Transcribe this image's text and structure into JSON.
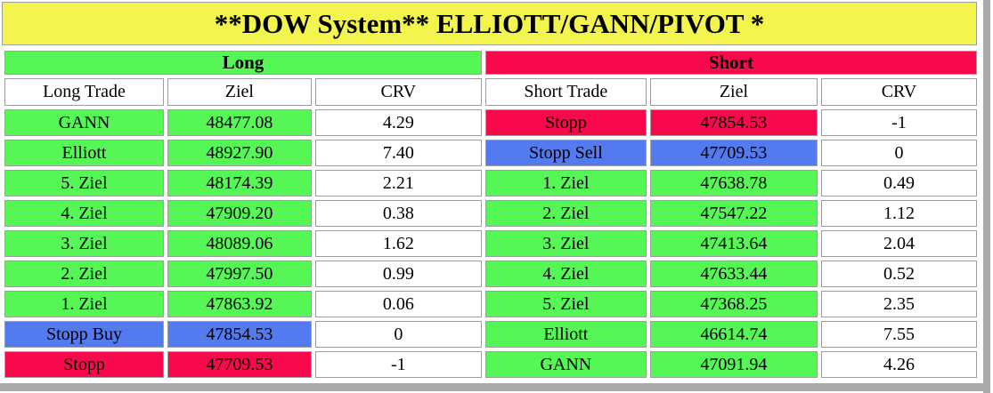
{
  "title": "**DOW System** ELLIOTT/GANN/PIVOT *",
  "colors": {
    "title_bg": "#f4f44e",
    "green": "#55f655",
    "red": "#f7094b",
    "blue": "#537aef",
    "cell_border": "#9e9e9e",
    "window_frame": "#a9a9a9"
  },
  "long": {
    "banner": "Long",
    "headers": [
      "Long Trade",
      "Ziel",
      "CRV"
    ],
    "rows": [
      {
        "label": "GANN",
        "ziel": "48477.08",
        "crv": "4.29",
        "color": "green"
      },
      {
        "label": "Elliott",
        "ziel": "48927.90",
        "crv": "7.40",
        "color": "green"
      },
      {
        "label": "5. Ziel",
        "ziel": "48174.39",
        "crv": "2.21",
        "color": "green"
      },
      {
        "label": "4. Ziel",
        "ziel": "47909.20",
        "crv": "0.38",
        "color": "green"
      },
      {
        "label": "3. Ziel",
        "ziel": "48089.06",
        "crv": "1.62",
        "color": "green"
      },
      {
        "label": "2. Ziel",
        "ziel": "47997.50",
        "crv": "0.99",
        "color": "green"
      },
      {
        "label": "1. Ziel",
        "ziel": "47863.92",
        "crv": "0.06",
        "color": "green"
      },
      {
        "label": "Stopp Buy",
        "ziel": "47854.53",
        "crv": "0",
        "color": "blue"
      },
      {
        "label": "Stopp",
        "ziel": "47709.53",
        "crv": "-1",
        "color": "red"
      }
    ]
  },
  "short": {
    "banner": "Short",
    "headers": [
      "Short Trade",
      "Ziel",
      "CRV"
    ],
    "rows": [
      {
        "label": "Stopp",
        "ziel": "47854.53",
        "crv": "-1",
        "color": "red"
      },
      {
        "label": "Stopp Sell",
        "ziel": "47709.53",
        "crv": "0",
        "color": "blue"
      },
      {
        "label": "1. Ziel",
        "ziel": "47638.78",
        "crv": "0.49",
        "color": "green"
      },
      {
        "label": "2. Ziel",
        "ziel": "47547.22",
        "crv": "1.12",
        "color": "green"
      },
      {
        "label": "3. Ziel",
        "ziel": "47413.64",
        "crv": "2.04",
        "color": "green"
      },
      {
        "label": "4. Ziel",
        "ziel": "47633.44",
        "crv": "0.52",
        "color": "green"
      },
      {
        "label": "5. Ziel",
        "ziel": "47368.25",
        "crv": "2.35",
        "color": "green"
      },
      {
        "label": "Elliott",
        "ziel": "46614.74",
        "crv": "7.55",
        "color": "green"
      },
      {
        "label": "GANN",
        "ziel": "47091.94",
        "crv": "4.26",
        "color": "green"
      }
    ]
  }
}
